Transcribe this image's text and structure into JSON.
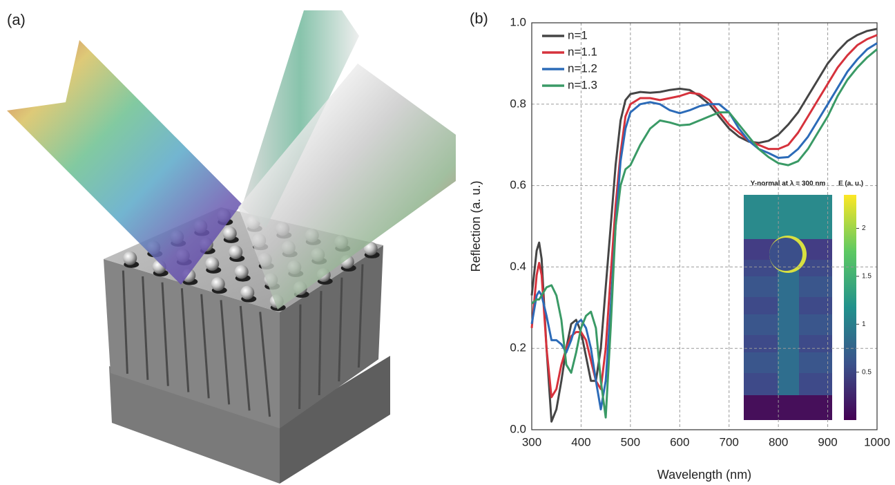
{
  "panel_labels": [
    "(a)",
    "(b)"
  ],
  "chart_data": {
    "type": "line",
    "xlabel": "Wavelength (nm)",
    "ylabel": "Reflection (a. u.)",
    "xlim": [
      300,
      1000
    ],
    "ylim": [
      0,
      1
    ],
    "xticks": [
      300,
      400,
      500,
      600,
      700,
      800,
      900,
      1000
    ],
    "yticks": [
      {
        "value": 0,
        "label": "0.0"
      },
      0.2,
      0.4,
      0.6,
      0.8,
      {
        "value": 1,
        "label": "1.0"
      }
    ],
    "grid": true,
    "legend": "upper left",
    "x": [
      300,
      310,
      315,
      320,
      330,
      340,
      350,
      360,
      370,
      380,
      390,
      400,
      410,
      420,
      430,
      440,
      450,
      460,
      470,
      480,
      490,
      500,
      520,
      540,
      560,
      580,
      600,
      620,
      640,
      660,
      680,
      700,
      720,
      740,
      760,
      780,
      800,
      820,
      840,
      860,
      880,
      900,
      920,
      940,
      960,
      980,
      1000
    ],
    "series": [
      {
        "name": "n=1",
        "color": "#454545",
        "values": [
          0.33,
          0.44,
          0.46,
          0.42,
          0.2,
          0.02,
          0.05,
          0.12,
          0.2,
          0.26,
          0.27,
          0.24,
          0.18,
          0.12,
          0.12,
          0.2,
          0.35,
          0.5,
          0.65,
          0.76,
          0.81,
          0.825,
          0.83,
          0.828,
          0.83,
          0.835,
          0.838,
          0.835,
          0.82,
          0.8,
          0.77,
          0.74,
          0.72,
          0.708,
          0.705,
          0.71,
          0.725,
          0.75,
          0.78,
          0.82,
          0.86,
          0.9,
          0.93,
          0.955,
          0.97,
          0.98,
          0.985
        ]
      },
      {
        "name": "n=1.1",
        "color": "#d6323c",
        "values": [
          0.25,
          0.38,
          0.41,
          0.38,
          0.2,
          0.08,
          0.1,
          0.16,
          0.2,
          0.23,
          0.24,
          0.24,
          0.22,
          0.17,
          0.12,
          0.1,
          0.2,
          0.38,
          0.55,
          0.68,
          0.77,
          0.8,
          0.815,
          0.815,
          0.81,
          0.815,
          0.82,
          0.828,
          0.825,
          0.81,
          0.78,
          0.75,
          0.73,
          0.71,
          0.7,
          0.69,
          0.69,
          0.7,
          0.73,
          0.77,
          0.81,
          0.85,
          0.89,
          0.92,
          0.945,
          0.96,
          0.97
        ]
      },
      {
        "name": "n=1.2",
        "color": "#2c6bb8",
        "values": [
          0.26,
          0.33,
          0.34,
          0.33,
          0.28,
          0.22,
          0.22,
          0.21,
          0.19,
          0.22,
          0.26,
          0.27,
          0.25,
          0.2,
          0.12,
          0.05,
          0.12,
          0.3,
          0.5,
          0.66,
          0.74,
          0.78,
          0.8,
          0.805,
          0.8,
          0.785,
          0.778,
          0.785,
          0.795,
          0.8,
          0.8,
          0.78,
          0.74,
          0.71,
          0.69,
          0.68,
          0.668,
          0.67,
          0.69,
          0.72,
          0.76,
          0.8,
          0.84,
          0.88,
          0.91,
          0.935,
          0.95
        ]
      },
      {
        "name": "n=1.3",
        "color": "#3a9a66",
        "values": [
          0.31,
          0.32,
          0.32,
          0.33,
          0.35,
          0.355,
          0.33,
          0.27,
          0.16,
          0.14,
          0.19,
          0.25,
          0.28,
          0.29,
          0.25,
          0.12,
          0.03,
          0.25,
          0.5,
          0.6,
          0.64,
          0.65,
          0.7,
          0.74,
          0.76,
          0.755,
          0.748,
          0.75,
          0.76,
          0.77,
          0.78,
          0.78,
          0.75,
          0.72,
          0.69,
          0.67,
          0.655,
          0.65,
          0.66,
          0.69,
          0.73,
          0.77,
          0.82,
          0.86,
          0.89,
          0.915,
          0.935
        ]
      }
    ],
    "inset": {
      "title": "Y-normal at λ = 300 nm",
      "colorbar_label": "E (a. u.)",
      "clim": [
        0,
        2.35
      ],
      "ticks": [
        0.5,
        1,
        1.5,
        2
      ]
    }
  }
}
